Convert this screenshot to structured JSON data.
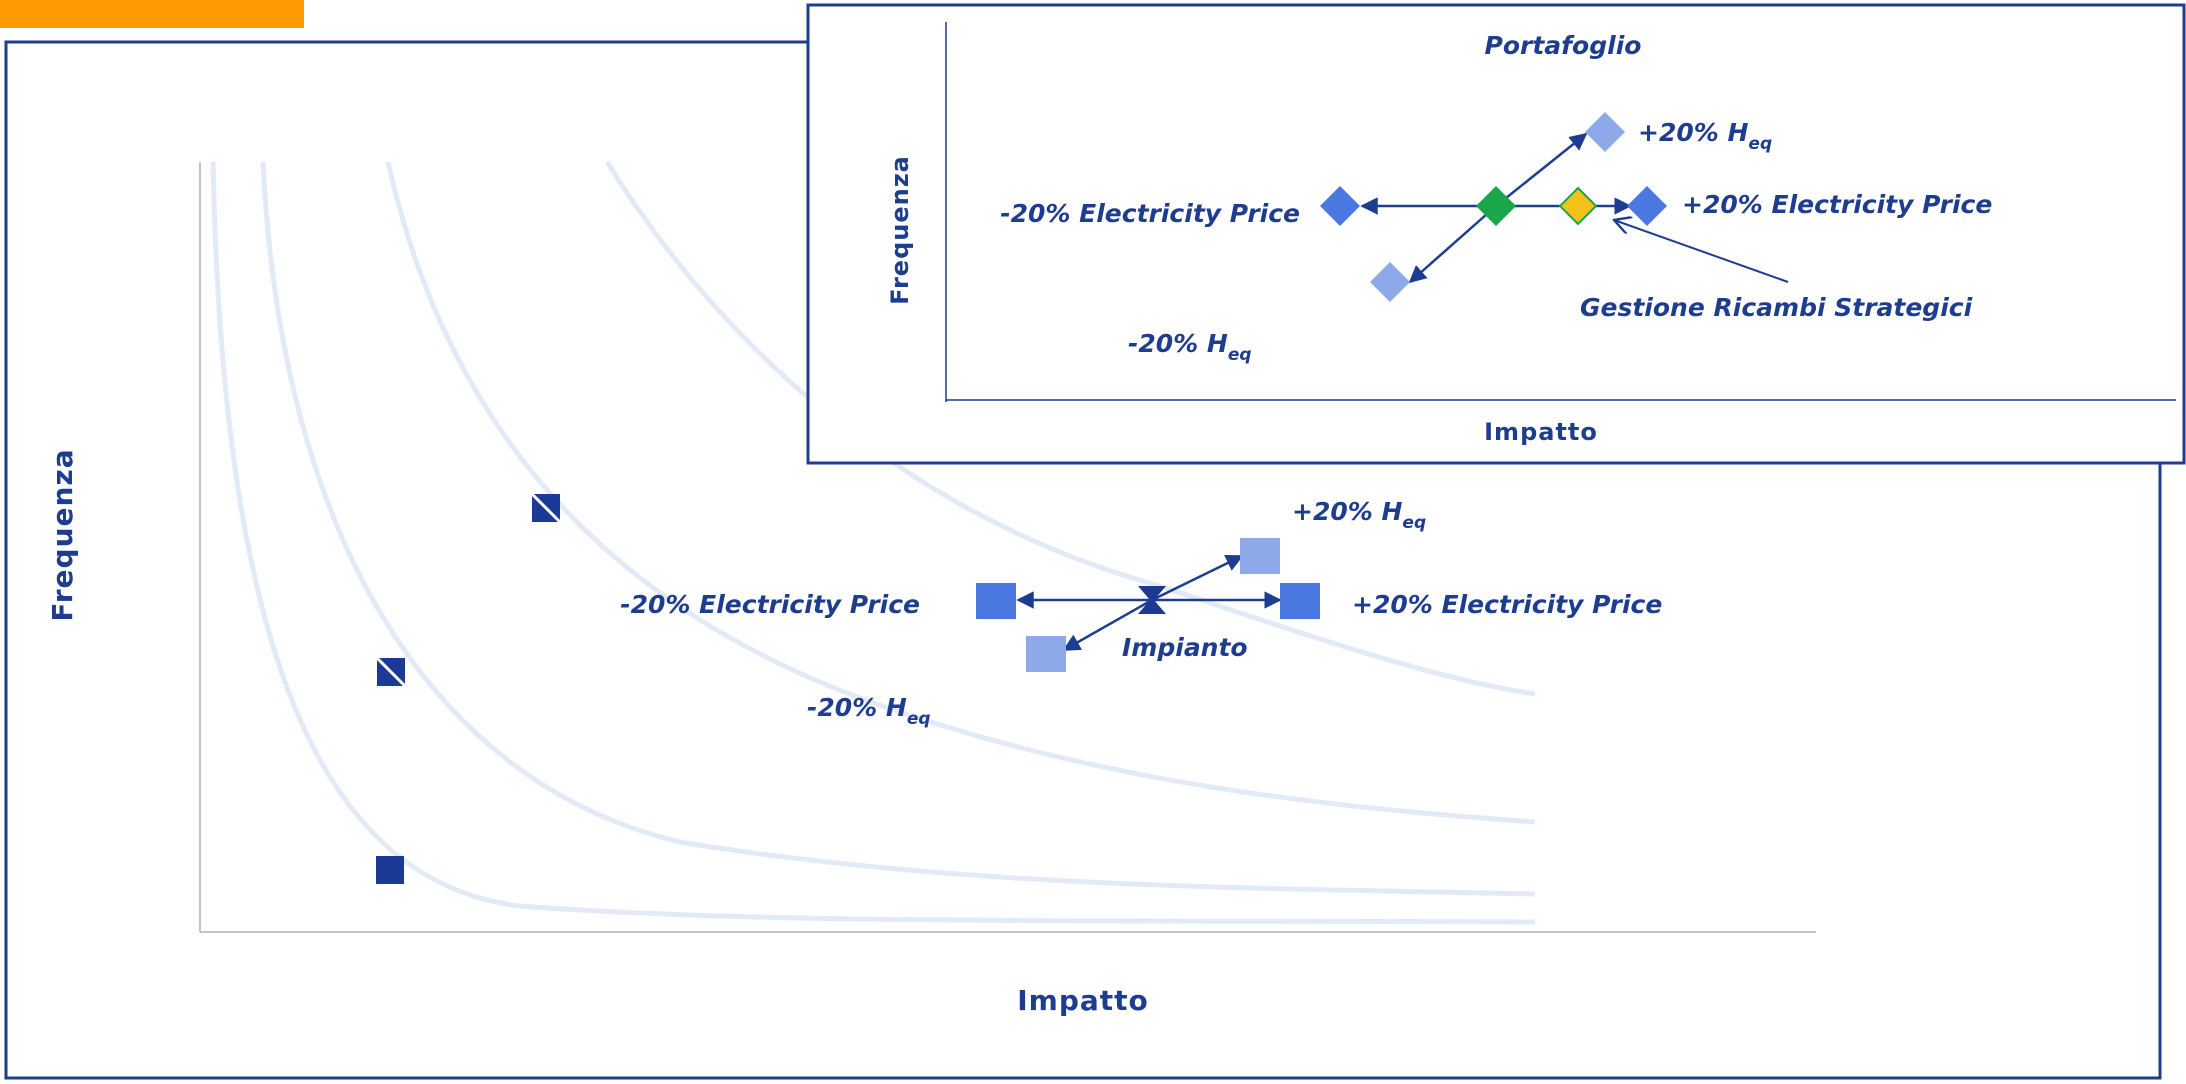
{
  "colors": {
    "accent_orange": "#ff9a00",
    "frame_blue": "#1f3d8f",
    "curve": "#e3eaf7",
    "marker_dark": "#1a3a96",
    "marker_mid": "#4b78e0",
    "marker_light": "#8ea9ea",
    "green": "#1aa64a",
    "yellow": "#f5c21b"
  },
  "main_chart": {
    "ylabel": "Frequenza",
    "xlabel": "Impatto",
    "labels": {
      "plus_heq_prefix": "+20% H",
      "plus_heq_sub": "eq",
      "minus_price": "-20% Electricity Price",
      "plus_price": "+20% Electricity Price",
      "center": "Impianto",
      "minus_heq_prefix": "-20% H",
      "minus_heq_sub": "eq"
    }
  },
  "inset_chart": {
    "title": "Portafoglio",
    "ylabel": "Frequenza",
    "xlabel": "Impatto",
    "labels": {
      "plus_heq_prefix": "+20% H",
      "plus_heq_sub": "eq",
      "minus_price": "-20% Electricity Price",
      "plus_price": "+20% Electricity Price",
      "gestione": "Gestione Ricambi Strategici",
      "minus_heq_prefix": "-20% H",
      "minus_heq_sub": "eq"
    }
  }
}
